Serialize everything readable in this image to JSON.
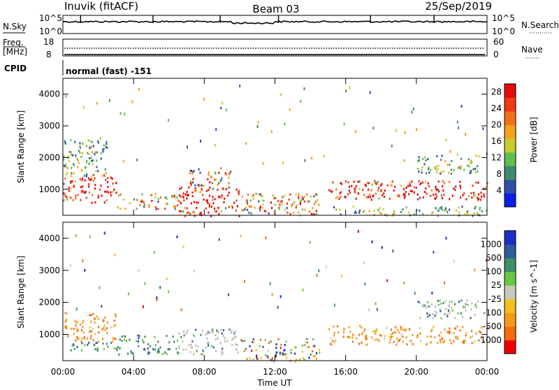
{
  "header": {
    "station": "Inuvik (fitACF)",
    "beam": "Beam 03",
    "date": "25/Sep/2019"
  },
  "summary": {
    "nsky_label": "N.Sky",
    "nsky_ticks": [
      "10^5",
      "10^0"
    ],
    "nsearch_label": "N.Search",
    "nsearch_ticks": [
      "10^5",
      "10^0"
    ],
    "freq_label": "Freq.",
    "freq_unit": "[MHz]",
    "freq_ticks": [
      "18",
      "8"
    ],
    "nave_label": "Nave",
    "nave_ticks": [
      "60",
      "0"
    ],
    "cpid_label": "CPID",
    "cpid_value": "normal (fast) -151"
  },
  "colors": {
    "power": [
      "#0a1ee6",
      "#2d4fa8",
      "#3e8a6e",
      "#5fbf50",
      "#c8cc2a",
      "#f4a21c",
      "#f56f18",
      "#ee3a14",
      "#e60a0a"
    ],
    "velocity": [
      "#f00000",
      "#f56a0c",
      "#f59a18",
      "#f4c020",
      "#c8c8bc",
      "#66c844",
      "#3e8e66",
      "#2e5a9e",
      "#1a2ec8"
    ],
    "velocity_gray": "#bdbdb2"
  },
  "chart_data": [
    {
      "type": "heatmap",
      "title": "Power",
      "xlabel": "Time UT",
      "ylabel": "Slant Range [km]",
      "x_ticks": [
        "00:00",
        "04:00",
        "08:00",
        "12:00",
        "16:00",
        "20:00",
        "00:00"
      ],
      "xlim_hours": [
        0,
        24
      ],
      "ylim": [
        180,
        4500
      ],
      "y_ticks": [
        1000,
        2000,
        3000,
        4000
      ],
      "colorbar": {
        "label": "Power [dB]",
        "ticks": [
          4,
          8,
          12,
          16,
          20,
          24,
          28
        ],
        "range": [
          0,
          30
        ]
      },
      "regions": [
        {
          "t": [
            0.0,
            3.0
          ],
          "r": [
            600,
            1400
          ],
          "value": "strong"
        },
        {
          "t": [
            0.0,
            2.5
          ],
          "r": [
            1400,
            2600
          ],
          "value": "weak"
        },
        {
          "t": [
            3.0,
            6.5
          ],
          "r": [
            400,
            900
          ],
          "value": "mixed"
        },
        {
          "t": [
            6.5,
            10.0
          ],
          "r": [
            180,
            1100
          ],
          "value": "strong"
        },
        {
          "t": [
            7.0,
            9.5
          ],
          "r": [
            1100,
            1700
          ],
          "value": "mixed"
        },
        {
          "t": [
            10.0,
            14.5
          ],
          "r": [
            180,
            900
          ],
          "value": "mixed"
        },
        {
          "t": [
            15.0,
            24.0
          ],
          "r": [
            700,
            1300
          ],
          "value": "strong"
        },
        {
          "t": [
            15.0,
            24.0
          ],
          "r": [
            180,
            500
          ],
          "value": "weak"
        },
        {
          "t": [
            20.0,
            23.5
          ],
          "r": [
            1500,
            2100
          ],
          "value": "weak"
        }
      ]
    },
    {
      "type": "heatmap",
      "title": "Velocity",
      "xlabel": "Time UT",
      "ylabel": "Slant Range [km]",
      "x_ticks": [
        "00:00",
        "04:00",
        "08:00",
        "12:00",
        "16:00",
        "20:00",
        "00:00"
      ],
      "xlim_hours": [
        0,
        24
      ],
      "ylim": [
        180,
        4500
      ],
      "y_ticks": [
        1000,
        2000,
        3000,
        4000
      ],
      "colorbar": {
        "label": "Velocity [m s^-1]",
        "ticks": [
          "1000",
          "500",
          "100",
          "25",
          "-25",
          "-100",
          "-500",
          "-1000"
        ]
      },
      "regions": [
        {
          "t": [
            0.0,
            3.0
          ],
          "r": [
            800,
            1700
          ],
          "value": "negative"
        },
        {
          "t": [
            0.0,
            3.0
          ],
          "r": [
            500,
            800
          ],
          "value": "positive"
        },
        {
          "t": [
            3.0,
            6.5
          ],
          "r": [
            400,
            1000
          ],
          "value": "positive"
        },
        {
          "t": [
            6.5,
            10.0
          ],
          "r": [
            400,
            1200
          ],
          "value": "near-zero"
        },
        {
          "t": [
            10.0,
            14.5
          ],
          "r": [
            180,
            900
          ],
          "value": "mixed"
        },
        {
          "t": [
            15.0,
            24.0
          ],
          "r": [
            700,
            1300
          ],
          "value": "negative"
        },
        {
          "t": [
            20.0,
            23.5
          ],
          "r": [
            1500,
            2100
          ],
          "value": "near-zero"
        }
      ]
    }
  ]
}
